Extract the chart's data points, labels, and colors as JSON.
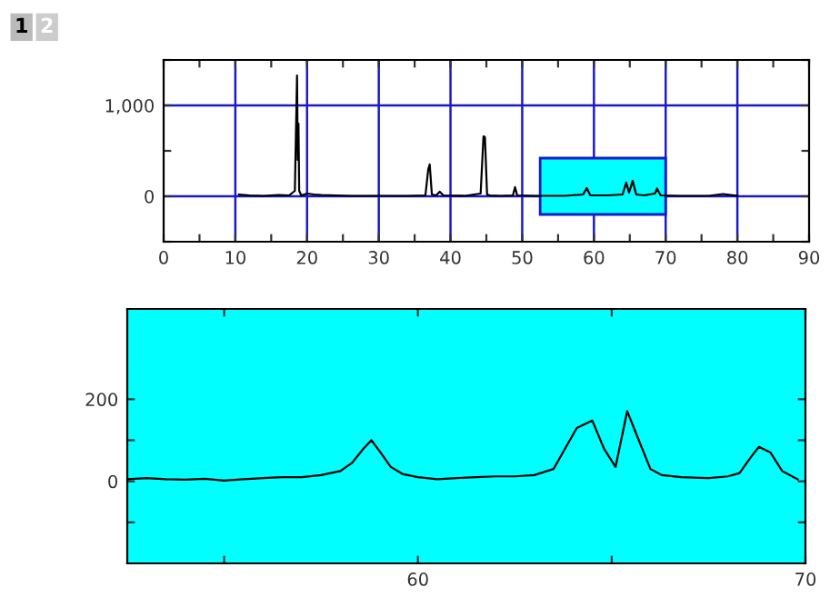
{
  "chart_data": [
    {
      "type": "line",
      "annotations": [
        "1",
        "2"
      ],
      "grid": true,
      "x": [
        10.5,
        12,
        14,
        16,
        17.5,
        18.3,
        18.6,
        18.7,
        18.8,
        18.9,
        19.2,
        20,
        21,
        22,
        24,
        26,
        30,
        34,
        36.5,
        36.9,
        37.1,
        37.4,
        38,
        38.5,
        39,
        42,
        44.2,
        44.6,
        44.8,
        45.1,
        45.5,
        47,
        48.7,
        49,
        49.3,
        52,
        56,
        58.5,
        59,
        59.5,
        62,
        64,
        64.5,
        64.9,
        65.4,
        65.9,
        67,
        68.5,
        68.8,
        69.3,
        72,
        76,
        78,
        80
      ],
      "series": [
        {
          "color": "#000000",
          "values": [
            20,
            10,
            5,
            15,
            10,
            60,
            1330,
            400,
            800,
            60,
            10,
            30,
            20,
            15,
            10,
            5,
            5,
            5,
            10,
            300,
            350,
            20,
            10,
            50,
            10,
            5,
            30,
            660,
            650,
            20,
            10,
            5,
            10,
            100,
            10,
            5,
            5,
            20,
            90,
            10,
            10,
            20,
            150,
            40,
            170,
            20,
            10,
            30,
            85,
            10,
            5,
            5,
            25,
            5
          ]
        }
      ],
      "xlim": [
        0,
        90
      ],
      "xticks": [
        0,
        {
          "value": 5,
          "label": null
        },
        10,
        {
          "value": 15,
          "label": null
        },
        20,
        {
          "value": 25,
          "label": null
        },
        30,
        {
          "value": 35,
          "label": null
        },
        40,
        {
          "value": 45,
          "label": null
        },
        50,
        {
          "value": 55,
          "label": null
        },
        60,
        {
          "value": 65,
          "label": null
        },
        70,
        {
          "value": 75,
          "label": null
        },
        80,
        {
          "value": 85,
          "label": null
        },
        90
      ],
      "ylim": [
        -500,
        1500
      ],
      "yticks": [
        {
          "value": -500,
          "label": null
        },
        0,
        {
          "value": 500,
          "label": null
        },
        {
          "value": 1000,
          "label": "1,000"
        },
        {
          "value": 1500,
          "label": null
        }
      ],
      "bands": [
        {
          "axis": "x",
          "from": 52.5,
          "to": 70,
          "color": "#00ffff"
        }
      ]
    },
    {
      "type": "line",
      "grid": false,
      "x": [
        52.5,
        53,
        53.5,
        54,
        54.5,
        55,
        55.5,
        56,
        56.5,
        57,
        57.5,
        58,
        58.3,
        58.6,
        58.8,
        59,
        59.3,
        59.6,
        60,
        60.5,
        61,
        61.5,
        62,
        62.5,
        63,
        63.5,
        63.8,
        64.1,
        64.5,
        64.8,
        65.1,
        65.4,
        65.7,
        66,
        66.3,
        66.8,
        67.5,
        68,
        68.3,
        68.6,
        68.8,
        69.1,
        69.4,
        69.8
      ],
      "series": [
        {
          "color": "#000000",
          "values": [
            5,
            8,
            5,
            4,
            6,
            2,
            5,
            8,
            10,
            10,
            15,
            25,
            45,
            80,
            100,
            75,
            35,
            18,
            10,
            5,
            8,
            10,
            12,
            12,
            15,
            30,
            80,
            130,
            148,
            80,
            35,
            171,
            100,
            30,
            15,
            10,
            8,
            12,
            20,
            60,
            84,
            70,
            25,
            5
          ]
        }
      ],
      "xlim": [
        52.5,
        70
      ],
      "xticks": [
        {
          "value": 55,
          "label": null
        },
        60,
        {
          "value": 65,
          "label": null
        },
        70
      ],
      "ylim": [
        -200,
        420
      ],
      "yticks": [
        {
          "value": -100,
          "label": null
        },
        0,
        {
          "value": 100,
          "label": null
        },
        200
      ]
    }
  ]
}
